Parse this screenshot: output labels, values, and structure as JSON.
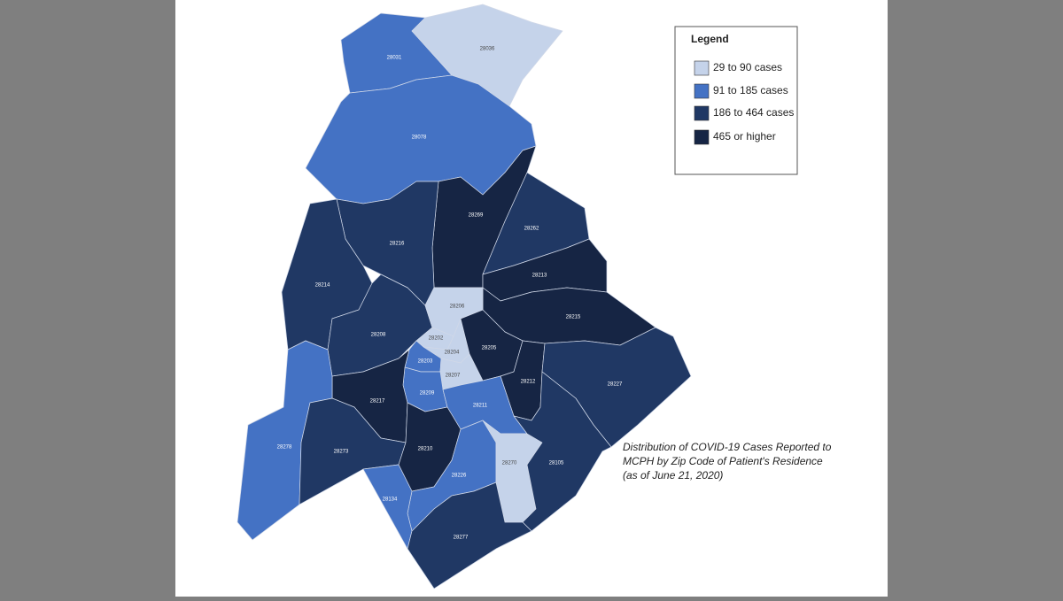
{
  "legend": {
    "title": "Legend",
    "items": [
      {
        "label": "29 to 90 cases",
        "color": "#c5d3ea"
      },
      {
        "label": "91 to 185 cases",
        "color": "#4472c4"
      },
      {
        "label": "186 to 464 cases",
        "color": "#203864"
      },
      {
        "label": "465 or higher",
        "color": "#162544"
      }
    ]
  },
  "zips": [
    {
      "label": "28031",
      "color": "#4472c4"
    },
    {
      "label": "28036",
      "color": "#c5d3ea"
    },
    {
      "label": "28078",
      "color": "#4472c4"
    },
    {
      "label": "28269",
      "color": "#162544"
    },
    {
      "label": "28262",
      "color": "#203864"
    },
    {
      "label": "28213",
      "color": "#162544"
    },
    {
      "label": "28215",
      "color": "#162544"
    },
    {
      "label": "28216",
      "color": "#203864"
    },
    {
      "label": "28214",
      "color": "#203864"
    },
    {
      "label": "28208",
      "color": "#203864"
    },
    {
      "label": "28206",
      "color": "#c5d3ea"
    },
    {
      "label": "28202",
      "color": "#c5d3ea"
    },
    {
      "label": "28204",
      "color": "#c5d3ea"
    },
    {
      "label": "28205",
      "color": "#162544"
    },
    {
      "label": "28203",
      "color": "#4472c4"
    },
    {
      "label": "28207",
      "color": "#c5d3ea"
    },
    {
      "label": "28212",
      "color": "#162544"
    },
    {
      "label": "28227",
      "color": "#203864"
    },
    {
      "label": "28209",
      "color": "#4472c4"
    },
    {
      "label": "28211",
      "color": "#4472c4"
    },
    {
      "label": "28217",
      "color": "#162544"
    },
    {
      "label": "28278",
      "color": "#4472c4"
    },
    {
      "label": "28273",
      "color": "#203864"
    },
    {
      "label": "28210",
      "color": "#162544"
    },
    {
      "label": "28226",
      "color": "#4472c4"
    },
    {
      "label": "28134",
      "color": "#4472c4"
    },
    {
      "label": "28270",
      "color": "#c5d3ea"
    },
    {
      "label": "28105",
      "color": "#203864"
    },
    {
      "label": "28277",
      "color": "#203864"
    }
  ],
  "caption": [
    "Distribution of COVID-19 Cases Reported to",
    "MCPH by Zip Code of Patient's Residence",
    "(as of June 21, 2020)"
  ]
}
